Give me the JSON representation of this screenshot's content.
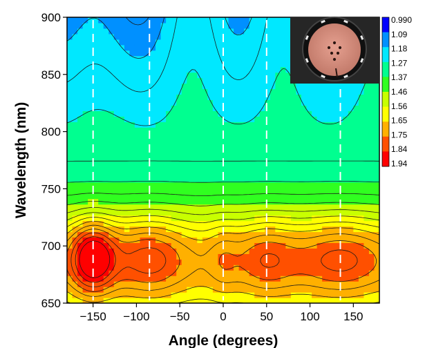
{
  "chart_data": {
    "type": "heatmap",
    "xlabel": "Angle (degrees)",
    "ylabel": "Wavelength (nm)",
    "xlim": [
      -180,
      180
    ],
    "ylim": [
      650,
      900
    ],
    "xticks": [
      -150,
      -100,
      -50,
      0,
      50,
      100,
      150
    ],
    "yticks": [
      650,
      700,
      750,
      800,
      850,
      900
    ],
    "colorbar": {
      "labels": [
        "0.990",
        "1.09",
        "1.18",
        "1.27",
        "1.37",
        "1.46",
        "1.56",
        "1.65",
        "1.75",
        "1.84",
        "1.94"
      ],
      "range": [
        0.99,
        1.94
      ],
      "colors": [
        "#0000ff",
        "#0090ff",
        "#00e8ff",
        "#00ff90",
        "#30ff20",
        "#c8ff00",
        "#ffff00",
        "#ffb000",
        "#ff5000",
        "#ff0000"
      ]
    },
    "dashed_lines_x": [
      -150,
      -85,
      0,
      50,
      135
    ],
    "contour_lines": true,
    "inset": "photo-of-sample-disk"
  }
}
